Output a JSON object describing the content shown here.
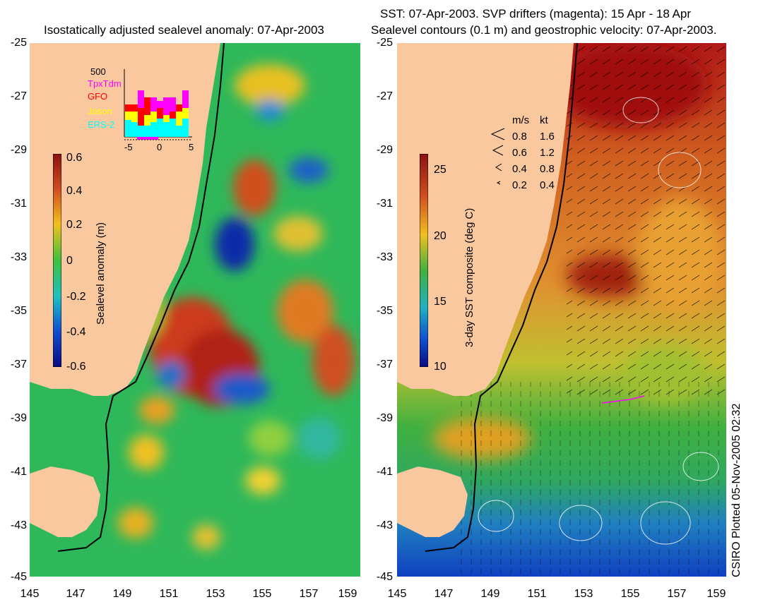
{
  "left": {
    "title": "Isostatically adjusted sealevel anomaly: 07-Apr-2003",
    "colorbar": {
      "label": "Sealevel anomaly (m)",
      "ticks": [
        "0.6",
        "0.4",
        "0.2",
        "0",
        "-0.2",
        "-0.4",
        "-0.6"
      ]
    },
    "inset": {
      "ymax_label": "500",
      "sat_labels": [
        {
          "name": "TpxTdm",
          "color": "#ff00ff"
        },
        {
          "name": "GFO",
          "color": "#ff0000"
        },
        {
          "name": "Jason",
          "color": "#ffff00"
        },
        {
          "name": "ERS-2",
          "color": "#00ffff"
        }
      ],
      "x_ticks": [
        "-5",
        "0",
        "5"
      ]
    }
  },
  "right": {
    "title_line1": "SST: 07-Apr-2003. SVP drifters (magenta): 15 Apr - 18 Apr",
    "title_line2": "Sealevel contours (0.1 m) and geostrophic velocity: 07-Apr-2003.",
    "colorbar": {
      "label": "3-day SST composite (deg C)",
      "ticks": [
        "25",
        "20",
        "15",
        "10"
      ]
    },
    "velocity_legend": {
      "header_ms": "m/s",
      "header_kt": "kt",
      "rows": [
        {
          "ms": "0.8",
          "kt": "1.6"
        },
        {
          "ms": "0.6",
          "kt": "1.2"
        },
        {
          "ms": "0.4",
          "kt": "0.8"
        },
        {
          "ms": "0.2",
          "kt": "0.4"
        }
      ]
    }
  },
  "axes": {
    "lat_ticks": [
      "-25",
      "-27",
      "-29",
      "-31",
      "-33",
      "-35",
      "-37",
      "-39",
      "-41",
      "-43",
      "-45"
    ],
    "lon_ticks": [
      "145",
      "147",
      "149",
      "151",
      "153",
      "155",
      "157",
      "159"
    ]
  },
  "side_label": "CSIRO Plotted 05-Nov-2005 02:32",
  "colors": {
    "land": "#f9c89e",
    "sla_positive": "#c0281a",
    "sla_negative": "#0a2aa8",
    "sst_warm": "#b01818",
    "sst_cool": "#1040c0"
  }
}
